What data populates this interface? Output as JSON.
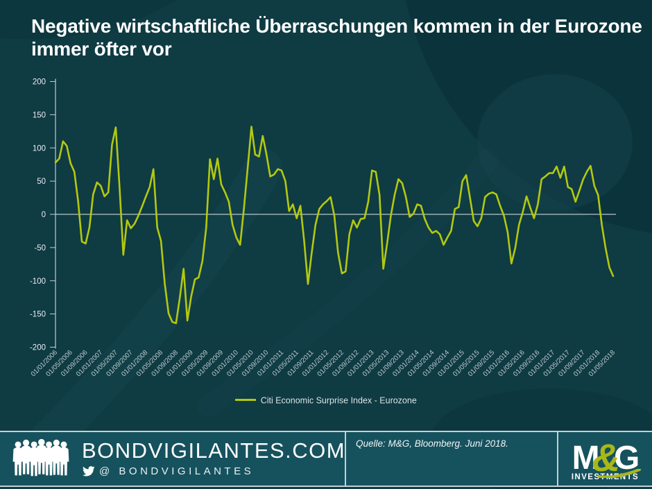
{
  "title": "Negative wirtschaftliche Überraschungen kommen in der Eurozone immer öfter vor",
  "legend": {
    "label": "Citi Economic Surprise Index - Eurozone"
  },
  "footer": {
    "site": "BONDVIGILANTES.COM",
    "twitter": "@ BONDVIGILANTES",
    "source": "Quelle: M&G, Bloomberg. Juni 2018.",
    "logo": {
      "m": "M",
      "amp": "&",
      "g": "G",
      "sub": "INVESTMENTS"
    }
  },
  "colors": {
    "background": "#0f3b43",
    "line": "#b3c90f",
    "axis": "#c2cdd0",
    "y_label": "#e9eff0",
    "x_label": "#bccacc",
    "footer_background": "#16525e",
    "brand_olive": "#a9b719",
    "title_text": "#ffffff"
  },
  "chart_data": {
    "type": "line",
    "title": "Negative wirtschaftliche Überraschungen kommen in der Eurozone immer öfter vor",
    "xlabel": "",
    "ylabel": "",
    "ylim": [
      -200,
      200
    ],
    "y_ticks": [
      200,
      150,
      100,
      50,
      0,
      -50,
      -100,
      -150,
      -200
    ],
    "grid": "zero-line-only",
    "legend_position": "bottom-center",
    "x_start": "01/01/2006",
    "x_end": "01/05/2018",
    "x_frequency": "monthly",
    "x_tick_every": 4,
    "x_tick_labels": [
      "01/01/2006",
      "01/05/2006",
      "01/09/2006",
      "01/01/2007",
      "01/05/2007",
      "01/09/2007",
      "01/01/2008",
      "01/05/2008",
      "01/09/2008",
      "01/01/2009",
      "01/05/2009",
      "01/09/2009",
      "01/01/2010",
      "01/05/2010",
      "01/09/2010",
      "01/01/2011",
      "01/05/2011",
      "01/09/2011",
      "01/01/2012",
      "01/05/2012",
      "01/09/2012",
      "01/01/2013",
      "01/05/2013",
      "01/09/2013",
      "01/01/2014",
      "01/05/2014",
      "01/09/2014",
      "01/01/2015",
      "01/05/2015",
      "01/09/2015",
      "01/01/2016",
      "01/05/2016",
      "01/09/2016",
      "01/01/2017",
      "01/05/2017",
      "01/09/2017",
      "01/01/2018",
      "01/05/2018"
    ],
    "series": [
      {
        "name": "Citi Economic Surprise Index - Eurozone",
        "color": "#b3c90f",
        "values": [
          78,
          84,
          110,
          103,
          77,
          64,
          20,
          -41,
          -44,
          -20,
          30,
          48,
          43,
          27,
          33,
          105,
          131,
          40,
          -61,
          -9,
          -21,
          -14,
          -2,
          12,
          27,
          41,
          68,
          -20,
          -40,
          -104,
          -149,
          -162,
          -164,
          -125,
          -82,
          -160,
          -124,
          -98,
          -95,
          -70,
          -20,
          83,
          53,
          84,
          45,
          33,
          19,
          -16,
          -35,
          -46,
          8,
          70,
          132,
          90,
          87,
          118,
          90,
          57,
          60,
          68,
          66,
          50,
          5,
          15,
          -6,
          13,
          -40,
          -105,
          -58,
          -16,
          8,
          15,
          20,
          26,
          -2,
          -58,
          -89,
          -86,
          -30,
          -9,
          -20,
          -7,
          -6,
          19,
          66,
          64,
          29,
          -82,
          -44,
          -2,
          29,
          53,
          47,
          26,
          -4,
          1,
          15,
          13,
          -7,
          -20,
          -28,
          -25,
          -30,
          -46,
          -35,
          -25,
          8,
          11,
          50,
          59,
          25,
          -10,
          -18,
          -6,
          26,
          31,
          33,
          30,
          13,
          -2,
          -27,
          -74,
          -51,
          -16,
          3,
          27,
          10,
          -6,
          15,
          53,
          57,
          62,
          62,
          72,
          55,
          72,
          41,
          38,
          19,
          35,
          52,
          64,
          73,
          43,
          29,
          -16,
          -51,
          -80,
          -93
        ]
      }
    ]
  }
}
